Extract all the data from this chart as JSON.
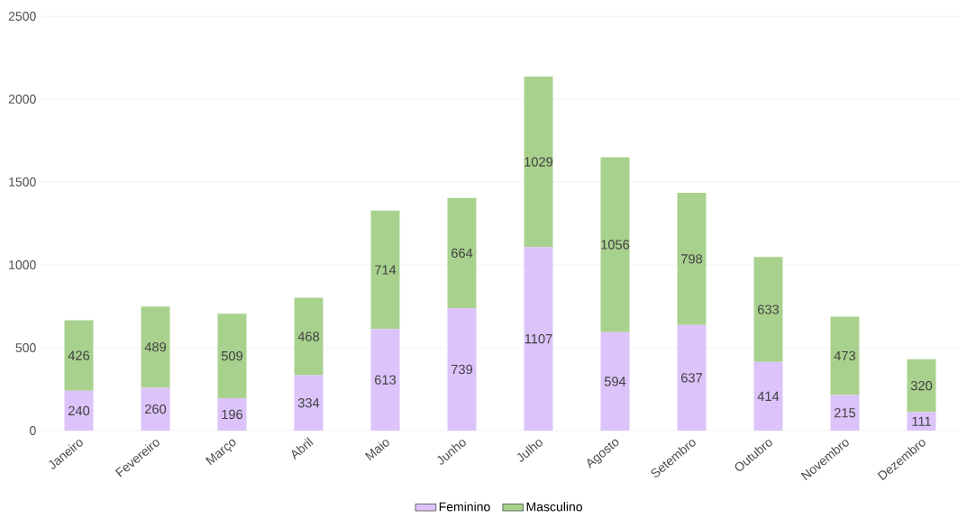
{
  "chart_data": {
    "type": "bar",
    "stacked": true,
    "categories": [
      "Janeiro",
      "Fevereiro",
      "Março",
      "Abril",
      "Maio",
      "Junho",
      "Julho",
      "Agosto",
      "Setembro",
      "Outubro",
      "Novembro",
      "Dezembro"
    ],
    "series": [
      {
        "name": "Feminino",
        "color": "#dcc3fa",
        "values": [
          240,
          260,
          196,
          334,
          613,
          739,
          1107,
          594,
          637,
          414,
          215,
          111
        ]
      },
      {
        "name": "Masculino",
        "color": "#a9d18e",
        "values": [
          426,
          489,
          509,
          468,
          714,
          664,
          1029,
          1056,
          798,
          633,
          473,
          320
        ]
      }
    ],
    "ylim": [
      0,
      2500
    ],
    "yticks": [
      0,
      500,
      1000,
      1500,
      2000,
      2500
    ],
    "grid": "y",
    "legend": "bottom",
    "data_labels": true
  }
}
